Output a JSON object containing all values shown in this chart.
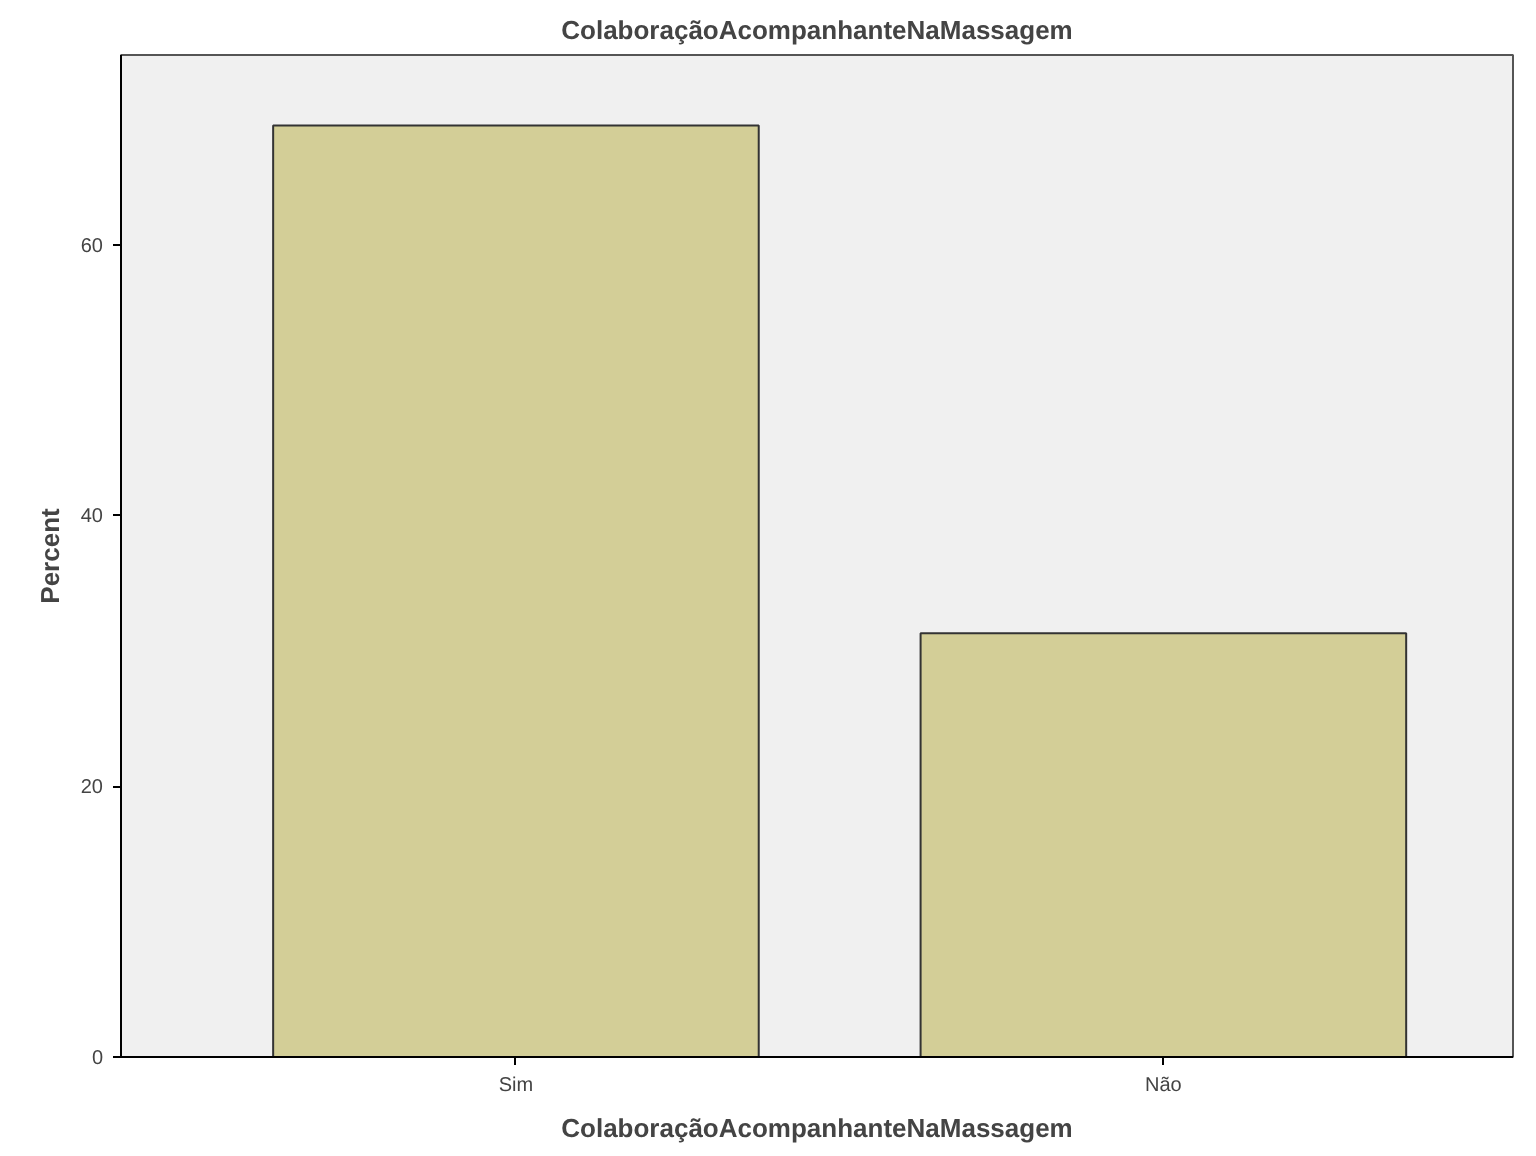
{
  "chart_data": {
    "type": "bar",
    "title": "ColaboraçãoAcompanhanteNaMassagem",
    "xlabel": "ColaboraçãoAcompanhanteNaMassagem",
    "ylabel": "Percent",
    "categories": [
      "Sim",
      "Não"
    ],
    "values": [
      68.8,
      31.3
    ],
    "color": "#d3ce97",
    "ylim": [
      0,
      74
    ],
    "yticks": [
      0,
      20,
      40,
      60
    ],
    "grid": false
  }
}
